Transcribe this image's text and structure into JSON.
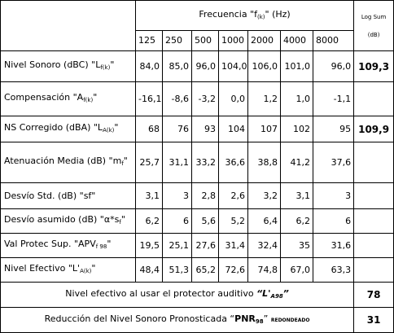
{
  "header": {
    "title": [
      {
        "t": "Frecuencia \"f"
      },
      {
        "sub": "(k)"
      },
      {
        "t": "\" (Hz)"
      }
    ],
    "log_sum": "Log Sum",
    "log_unit": "(dB)",
    "frequencies": [
      "125",
      "250",
      "500",
      "1000",
      "2000",
      "4000",
      "8000"
    ]
  },
  "rows": [
    {
      "label": [
        {
          "t": "Nivel Sonoro (dBC) \"L"
        },
        {
          "sub": "f(k)"
        },
        {
          "t": "\""
        }
      ],
      "values": [
        "84,0",
        "85,0",
        "96,0",
        "104,0",
        "106,0",
        "101,0",
        "96,0"
      ],
      "log_sum": "109,3"
    },
    {
      "label": [
        {
          "t": "Compensación \"A"
        },
        {
          "sub": "f(k)"
        },
        {
          "t": "\""
        }
      ],
      "values": [
        "-16,1",
        "-8,6",
        "-3,2",
        "0,0",
        "1,2",
        "1,0",
        "-1,1"
      ]
    },
    {
      "label": [
        {
          "t": "NS Corregido (dBA) \"L"
        },
        {
          "sub": "A(k)"
        },
        {
          "t": "\""
        }
      ],
      "values": [
        "68",
        "76",
        "93",
        "104",
        "107",
        "102",
        "95"
      ],
      "log_sum": "109,9"
    },
    {
      "label": [
        {
          "t": "Atenuación Media (dB) \"m"
        },
        {
          "sub": "f"
        },
        {
          "t": "\""
        }
      ],
      "values": [
        "25,7",
        "31,1",
        "33,2",
        "36,6",
        "38,8",
        "41,2",
        "37,6"
      ]
    },
    {
      "label": [
        {
          "t": "Desvío Std. (dB) \"sf\""
        }
      ],
      "values": [
        "3,1",
        "3",
        "2,8",
        "2,6",
        "3,2",
        "3,1",
        "3"
      ]
    },
    {
      "label": [
        {
          "t": "Desvío asumido (dB) \"α*s"
        },
        {
          "sub": "f"
        },
        {
          "t": "\""
        }
      ],
      "values": [
        "6,2",
        "6",
        "5,6",
        "5,2",
        "6,4",
        "6,2",
        "6"
      ]
    },
    {
      "label": [
        {
          "t": "Val Protec Sup. \"APV"
        },
        {
          "sub": "f 98"
        },
        {
          "t": "\""
        }
      ],
      "values": [
        "19,5",
        "25,1",
        "27,6",
        "31,4",
        "32,4",
        "35",
        "31,6"
      ]
    },
    {
      "label": [
        {
          "t": "Nivel Efectivo \"L'"
        },
        {
          "sub": "A(k)"
        },
        {
          "t": "\""
        }
      ],
      "values": [
        "48,4",
        "51,3",
        "65,2",
        "72,6",
        "74,8",
        "67,0",
        "63,3"
      ]
    }
  ],
  "summary": [
    {
      "label": [
        {
          "t": "Nivel efectivo al usar el protector auditivo "
        },
        {
          "em": "“L'"
        },
        {
          "emsub": "A98"
        },
        {
          "em": "”"
        }
      ],
      "value": "78"
    },
    {
      "label": [
        {
          "t": "Reducción del Nivel Sonoro Pronosticada “"
        },
        {
          "strong": "PNR"
        },
        {
          "strongsub": "98"
        },
        {
          "t": "” "
        },
        {
          "small": "REDONDEADO"
        }
      ],
      "value": "31"
    }
  ]
}
